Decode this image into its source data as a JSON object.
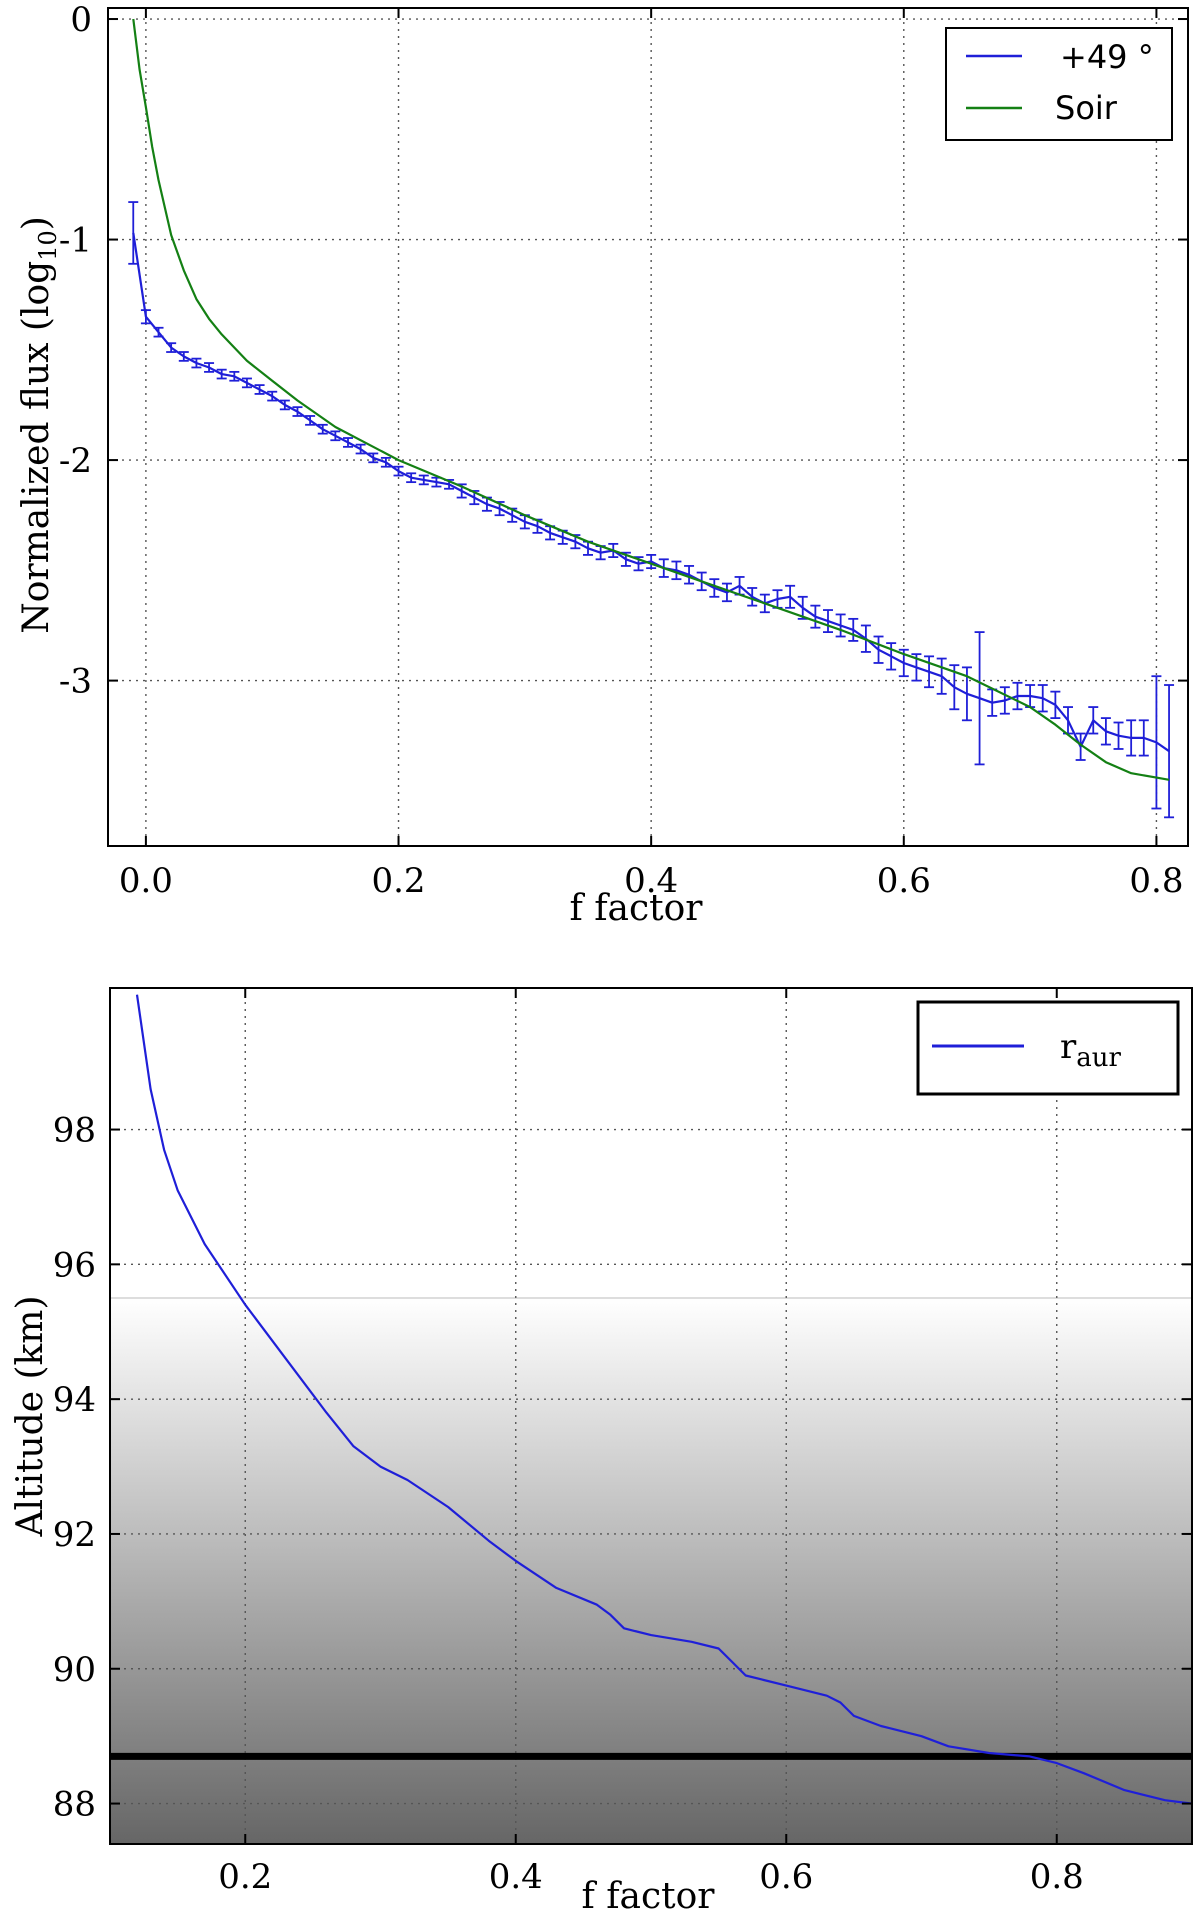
{
  "chart_data": [
    {
      "type": "line",
      "title": "",
      "xlabel": "f factor",
      "ylabel": "Normalized flux (log",
      "ylabel_sub": "10",
      "ylabel_close": ")",
      "xlim": [
        -0.03,
        0.825
      ],
      "ylim": [
        -3.75,
        0.05
      ],
      "xticks": [
        0.0,
        0.2,
        0.4,
        0.6,
        0.8
      ],
      "xtick_labels": [
        "0.0",
        "0.2",
        "0.4",
        "0.6",
        "0.8"
      ],
      "yticks": [
        0,
        -1,
        -2,
        -3
      ],
      "ytick_labels": [
        "0",
        "-1",
        "-2",
        "-3"
      ],
      "grid": true,
      "legend_position": "top-right",
      "series": [
        {
          "name": "+49 °",
          "color": "#1f1fd8",
          "error_bars": true,
          "x": [
            -0.01,
            0.0,
            0.01,
            0.02,
            0.03,
            0.04,
            0.05,
            0.06,
            0.07,
            0.08,
            0.09,
            0.1,
            0.11,
            0.12,
            0.13,
            0.14,
            0.15,
            0.16,
            0.17,
            0.18,
            0.19,
            0.2,
            0.21,
            0.22,
            0.23,
            0.24,
            0.25,
            0.26,
            0.27,
            0.28,
            0.29,
            0.3,
            0.31,
            0.32,
            0.33,
            0.34,
            0.35,
            0.36,
            0.37,
            0.38,
            0.39,
            0.4,
            0.41,
            0.42,
            0.43,
            0.44,
            0.45,
            0.46,
            0.47,
            0.48,
            0.49,
            0.5,
            0.51,
            0.52,
            0.53,
            0.54,
            0.55,
            0.56,
            0.57,
            0.58,
            0.59,
            0.6,
            0.61,
            0.62,
            0.63,
            0.64,
            0.65,
            0.66,
            0.67,
            0.68,
            0.69,
            0.7,
            0.71,
            0.72,
            0.73,
            0.74,
            0.75,
            0.76,
            0.77,
            0.78,
            0.79,
            0.8,
            0.81
          ],
          "y": [
            -0.97,
            -1.35,
            -1.42,
            -1.49,
            -1.53,
            -1.56,
            -1.58,
            -1.61,
            -1.62,
            -1.65,
            -1.68,
            -1.71,
            -1.75,
            -1.78,
            -1.82,
            -1.86,
            -1.89,
            -1.92,
            -1.95,
            -1.99,
            -2.01,
            -2.05,
            -2.08,
            -2.09,
            -2.1,
            -2.11,
            -2.14,
            -2.17,
            -2.2,
            -2.22,
            -2.25,
            -2.28,
            -2.3,
            -2.33,
            -2.35,
            -2.37,
            -2.4,
            -2.42,
            -2.41,
            -2.45,
            -2.47,
            -2.46,
            -2.49,
            -2.5,
            -2.52,
            -2.55,
            -2.58,
            -2.6,
            -2.57,
            -2.62,
            -2.65,
            -2.63,
            -2.62,
            -2.67,
            -2.71,
            -2.73,
            -2.75,
            -2.77,
            -2.81,
            -2.86,
            -2.89,
            -2.92,
            -2.94,
            -2.96,
            -2.98,
            -3.03,
            -3.06,
            -3.08,
            -3.1,
            -3.09,
            -3.07,
            -3.07,
            -3.08,
            -3.11,
            -3.18,
            -3.3,
            -3.18,
            -3.23,
            -3.25,
            -3.26,
            -3.26,
            -3.28,
            -3.32
          ],
          "err": [
            0.14,
            0.03,
            0.02,
            0.02,
            0.02,
            0.02,
            0.02,
            0.02,
            0.02,
            0.02,
            0.02,
            0.02,
            0.02,
            0.02,
            0.02,
            0.02,
            0.02,
            0.02,
            0.02,
            0.02,
            0.02,
            0.02,
            0.02,
            0.02,
            0.02,
            0.02,
            0.03,
            0.03,
            0.03,
            0.03,
            0.03,
            0.03,
            0.03,
            0.03,
            0.03,
            0.03,
            0.03,
            0.03,
            0.03,
            0.03,
            0.03,
            0.03,
            0.04,
            0.04,
            0.04,
            0.04,
            0.04,
            0.04,
            0.04,
            0.04,
            0.04,
            0.04,
            0.05,
            0.05,
            0.05,
            0.05,
            0.05,
            0.05,
            0.06,
            0.06,
            0.06,
            0.06,
            0.06,
            0.07,
            0.08,
            0.1,
            0.12,
            0.3,
            0.06,
            0.06,
            0.06,
            0.05,
            0.06,
            0.06,
            0.06,
            0.06,
            0.06,
            0.06,
            0.06,
            0.08,
            0.08,
            0.3,
            0.3
          ]
        },
        {
          "name": "Soir",
          "color": "#148014",
          "error_bars": false,
          "x": [
            -0.01,
            -0.005,
            0.0,
            0.005,
            0.01,
            0.02,
            0.03,
            0.04,
            0.05,
            0.06,
            0.08,
            0.1,
            0.12,
            0.15,
            0.2,
            0.25,
            0.3,
            0.35,
            0.4,
            0.45,
            0.5,
            0.55,
            0.6,
            0.65,
            0.7,
            0.72,
            0.74,
            0.76,
            0.78,
            0.8,
            0.81
          ],
          "y": [
            0.0,
            -0.23,
            -0.4,
            -0.58,
            -0.73,
            -0.98,
            -1.14,
            -1.27,
            -1.36,
            -1.43,
            -1.55,
            -1.64,
            -1.73,
            -1.85,
            -2.0,
            -2.12,
            -2.25,
            -2.37,
            -2.47,
            -2.57,
            -2.67,
            -2.77,
            -2.88,
            -2.98,
            -3.12,
            -3.2,
            -3.29,
            -3.37,
            -3.42,
            -3.44,
            -3.45
          ]
        }
      ]
    },
    {
      "type": "line",
      "title": "",
      "xlabel": "f factor",
      "ylabel": "Altitude (km)",
      "xlim": [
        0.1,
        0.9
      ],
      "ylim": [
        87.4,
        100.1
      ],
      "xticks": [
        0.2,
        0.4,
        0.6,
        0.8
      ],
      "xtick_labels": [
        "0.2",
        "0.4",
        "0.6",
        "0.8"
      ],
      "yticks": [
        98,
        96,
        94,
        92,
        90,
        88
      ],
      "ytick_labels": [
        "98",
        "96",
        "94",
        "92",
        "90",
        "88"
      ],
      "grid": true,
      "legend_position": "top-right",
      "shaded_band": {
        "from": 87.4,
        "to": 95.5,
        "color_top": "#ffffff",
        "color_bottom": "#666666"
      },
      "reference_line": {
        "y": 88.7,
        "color": "#000000"
      },
      "series": [
        {
          "name": "r",
          "name_sub": "aur",
          "color": "#1f1fd8",
          "x": [
            0.12,
            0.13,
            0.14,
            0.15,
            0.17,
            0.2,
            0.23,
            0.26,
            0.28,
            0.3,
            0.32,
            0.35,
            0.38,
            0.4,
            0.43,
            0.46,
            0.47,
            0.48,
            0.5,
            0.53,
            0.55,
            0.56,
            0.57,
            0.6,
            0.63,
            0.64,
            0.65,
            0.67,
            0.7,
            0.72,
            0.75,
            0.78,
            0.8,
            0.82,
            0.85,
            0.88,
            0.9
          ],
          "y": [
            100.0,
            98.6,
            97.7,
            97.1,
            96.3,
            95.4,
            94.6,
            93.8,
            93.3,
            93.0,
            92.8,
            92.4,
            91.9,
            91.6,
            91.2,
            90.95,
            90.8,
            90.6,
            90.5,
            90.4,
            90.3,
            90.1,
            89.9,
            89.75,
            89.6,
            89.5,
            89.3,
            89.15,
            89.0,
            88.85,
            88.75,
            88.7,
            88.6,
            88.45,
            88.2,
            88.05,
            88.0
          ]
        }
      ]
    }
  ]
}
